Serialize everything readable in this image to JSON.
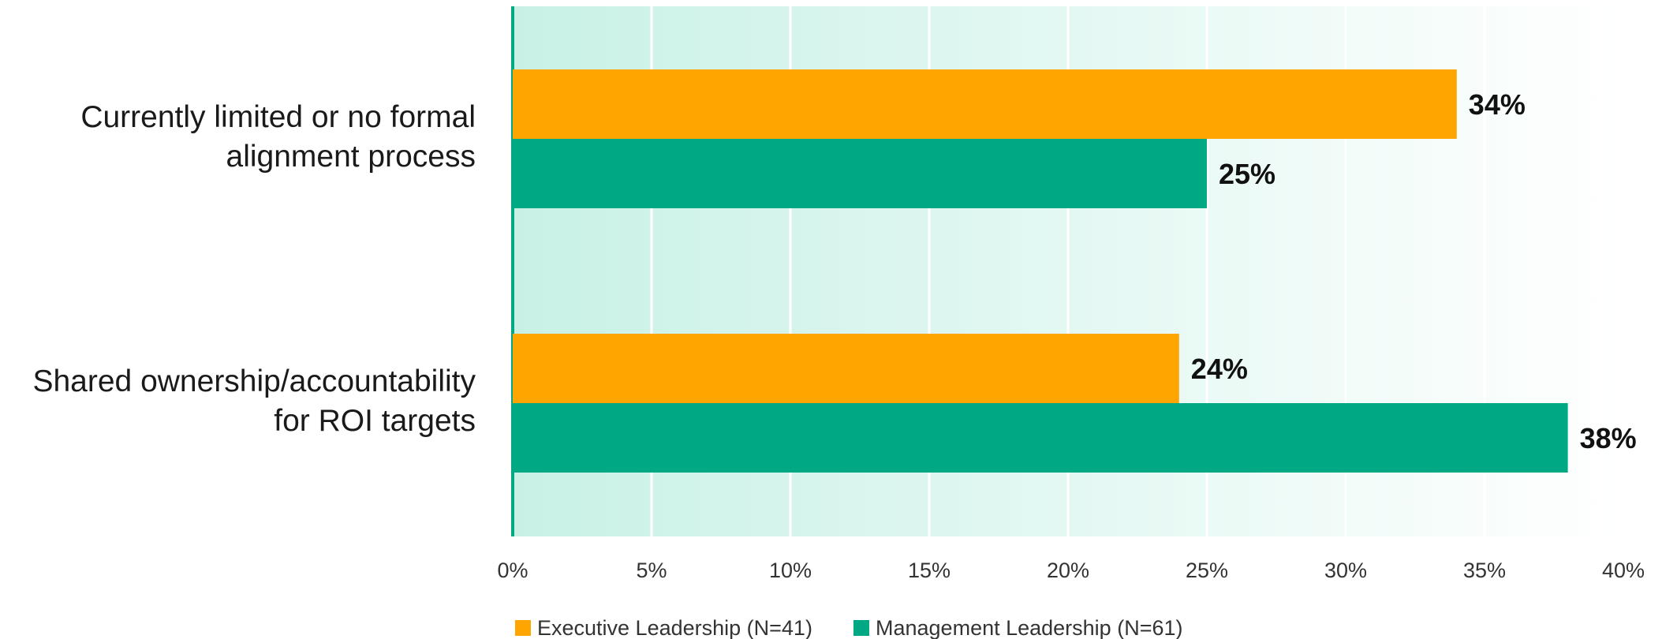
{
  "chart_data": {
    "type": "bar",
    "orientation": "horizontal",
    "categories": [
      [
        "Currently limited or no formal",
        "alignment process"
      ],
      [
        "Shared ownership/accountability",
        "for ROI targets"
      ]
    ],
    "series": [
      {
        "name": "Executive Leadership (N=41)",
        "color": "#FFA500",
        "values": [
          34,
          24
        ],
        "labels": [
          "34%",
          "24%"
        ]
      },
      {
        "name": "Management Leadership (N=61)",
        "color": "#00A983",
        "values": [
          25,
          38
        ],
        "labels": [
          "25%",
          "38%"
        ]
      }
    ],
    "xlim": [
      0,
      40
    ],
    "xticks": [
      0,
      5,
      10,
      15,
      20,
      25,
      30,
      35,
      40
    ],
    "xtick_labels": [
      "0%",
      "5%",
      "10%",
      "15%",
      "20%",
      "25%",
      "30%",
      "35%",
      "40%"
    ],
    "grid": true,
    "legend_position": "bottom-left",
    "background_gradient": [
      "#C8F1E6",
      "#FFFFFF"
    ],
    "axis_color": "#00A983"
  }
}
